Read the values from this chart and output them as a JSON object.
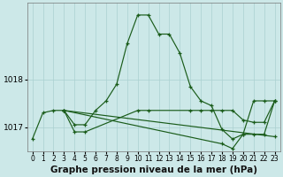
{
  "background_color": "#cce8e8",
  "grid_color": "#aad0d0",
  "line_color": "#1a5c1a",
  "title": "Graphe pression niveau de la mer (hPa)",
  "title_fontsize": 7.5,
  "ylim": [
    1016.5,
    1019.6
  ],
  "xlim": [
    -0.5,
    23.5
  ],
  "yticks": [
    1017,
    1018
  ],
  "ytick_fontsize": 6.5,
  "xtick_fontsize": 5.5,
  "xticks": [
    0,
    1,
    2,
    3,
    4,
    5,
    6,
    7,
    8,
    9,
    10,
    11,
    12,
    13,
    14,
    15,
    16,
    17,
    18,
    19,
    20,
    21,
    22,
    23
  ],
  "series": [
    {
      "x": [
        0,
        1,
        2,
        3,
        4,
        5,
        6,
        7,
        8,
        9,
        10,
        11,
        12,
        13,
        14,
        15,
        16,
        17,
        18,
        19,
        20,
        21,
        22,
        23
      ],
      "y": [
        1016.75,
        1017.3,
        1017.35,
        1017.35,
        1017.05,
        1017.05,
        1017.35,
        1017.55,
        1017.9,
        1018.75,
        1019.35,
        1019.35,
        1018.95,
        1018.95,
        1018.55,
        1017.85,
        1017.55,
        1017.45,
        1016.95,
        1016.75,
        1016.85,
        1017.55,
        1017.55,
        1017.55
      ]
    },
    {
      "x": [
        3,
        23
      ],
      "y": [
        1017.35,
        1016.8
      ]
    },
    {
      "x": [
        3,
        4,
        5,
        10,
        11,
        15,
        16,
        17,
        18,
        19,
        20,
        21,
        22,
        23
      ],
      "y": [
        1017.35,
        1016.9,
        1016.9,
        1017.35,
        1017.35,
        1017.35,
        1017.35,
        1017.35,
        1017.35,
        1017.35,
        1017.15,
        1017.1,
        1017.1,
        1017.55
      ]
    },
    {
      "x": [
        3,
        18,
        19,
        20,
        21,
        22,
        23
      ],
      "y": [
        1017.35,
        1016.65,
        1016.55,
        1016.85,
        1016.85,
        1016.85,
        1017.55
      ]
    }
  ]
}
